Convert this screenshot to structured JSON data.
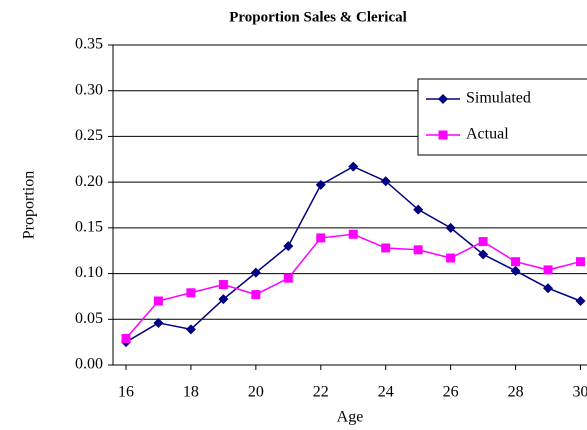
{
  "chart_data": {
    "type": "line",
    "title": "Proportion Sales & Clerical",
    "x_label": "Age",
    "y_label": "Proportion",
    "x": [
      16,
      17,
      18,
      19,
      20,
      21,
      22,
      23,
      24,
      25,
      26,
      27,
      28,
      29,
      30
    ],
    "series": [
      {
        "name": "Simulated",
        "color": "#000080",
        "marker": "diamond",
        "values": [
          0.025,
          0.046,
          0.039,
          0.072,
          0.101,
          0.13,
          0.197,
          0.217,
          0.201,
          0.17,
          0.15,
          0.121,
          0.103,
          0.084,
          0.07
        ]
      },
      {
        "name": "Actual",
        "color": "#ff00ff",
        "marker": "square",
        "values": [
          0.029,
          0.07,
          0.079,
          0.088,
          0.077,
          0.095,
          0.139,
          0.143,
          0.128,
          0.126,
          0.117,
          0.135,
          0.113,
          0.104,
          0.113
        ]
      }
    ],
    "xlim": [
      15.6,
      30.2
    ],
    "xticks": [
      16,
      18,
      20,
      22,
      24,
      26,
      28,
      30
    ],
    "ylim": [
      0,
      0.35
    ],
    "yticks": [
      {
        "value": 0,
        "label": "0.00"
      },
      {
        "value": 0.05,
        "label": "0.05"
      },
      {
        "value": 0.1,
        "label": "0.10"
      },
      {
        "value": 0.15,
        "label": "0.15"
      },
      {
        "value": 0.2,
        "label": "0.20"
      },
      {
        "value": 0.25,
        "label": "0.25"
      },
      {
        "value": 0.3,
        "label": "0.30"
      },
      {
        "value": 0.35,
        "label": "0.35"
      }
    ],
    "grid": true,
    "legend": "upper-right"
  }
}
